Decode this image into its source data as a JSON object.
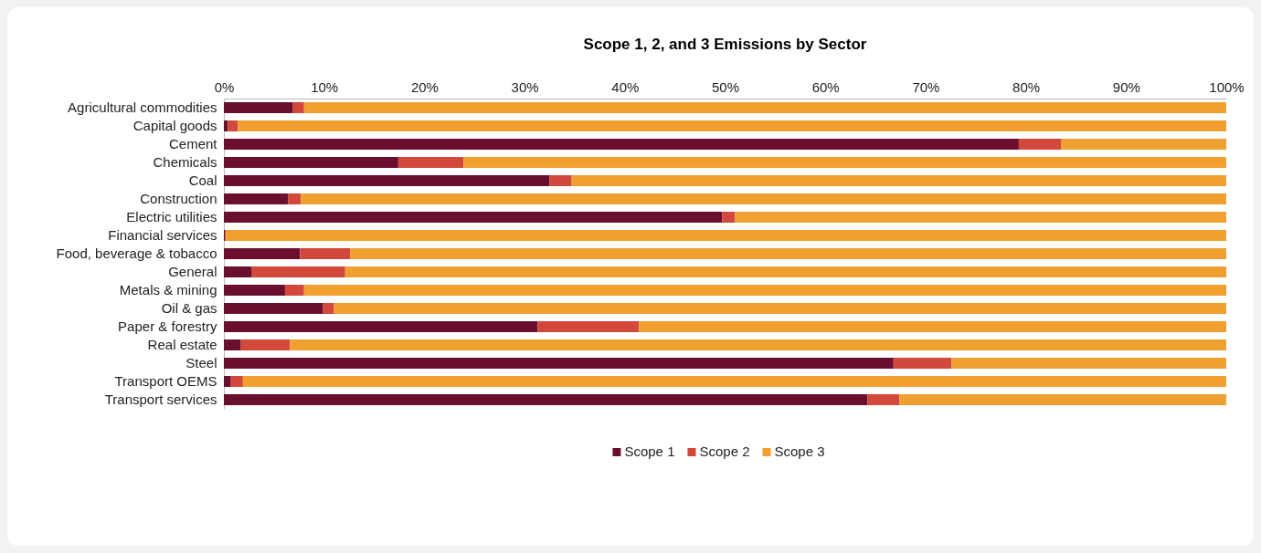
{
  "chart_data": {
    "type": "bar",
    "orientation": "horizontal",
    "stacked": true,
    "title": "Scope 1, 2, and 3 Emissions by Sector",
    "categories": [
      "Agricultural commodities",
      "Capital goods",
      "Cement",
      "Chemicals",
      "Coal",
      "Construction",
      "Electric utilities",
      "Financial services",
      "Food, beverage & tobacco",
      "General",
      "Metals & mining",
      "Oil & gas",
      "Paper & forestry",
      "Real estate",
      "Steel",
      "Transport OEMS",
      "Transport services"
    ],
    "series": [
      {
        "name": "Scope 1",
        "color": "#6b0f2e",
        "values": [
          6.9,
          0.4,
          79.3,
          17.4,
          32.5,
          6.4,
          49.7,
          0.1,
          7.6,
          2.8,
          6.1,
          9.9,
          31.3,
          1.7,
          66.8,
          0.7,
          64.2
        ]
      },
      {
        "name": "Scope 2",
        "color": "#d2483a",
        "values": [
          1.1,
          1.0,
          4.2,
          6.5,
          2.2,
          1.3,
          1.3,
          0.1,
          5.0,
          9.3,
          1.9,
          1.1,
          10.1,
          4.9,
          5.8,
          1.2,
          3.2
        ]
      },
      {
        "name": "Scope 3",
        "color": "#f0a030",
        "values": [
          92.0,
          98.6,
          16.5,
          76.1,
          65.3,
          92.3,
          49.0,
          99.8,
          87.4,
          87.9,
          92.0,
          89.0,
          58.6,
          93.4,
          27.4,
          98.1,
          32.6
        ]
      }
    ],
    "xlim": [
      0,
      100
    ],
    "xticks": [
      {
        "value": 0,
        "label": "0%"
      },
      {
        "value": 10,
        "label": "10%"
      },
      {
        "value": 20,
        "label": "20%"
      },
      {
        "value": 30,
        "label": "30%"
      },
      {
        "value": 40,
        "label": "40%"
      },
      {
        "value": 50,
        "label": "50%"
      },
      {
        "value": 60,
        "label": "60%"
      },
      {
        "value": 70,
        "label": "70%"
      },
      {
        "value": 80,
        "label": "80%"
      },
      {
        "value": 90,
        "label": "90%"
      },
      {
        "value": 100,
        "label": "100%"
      }
    ],
    "legend": "bottom"
  }
}
